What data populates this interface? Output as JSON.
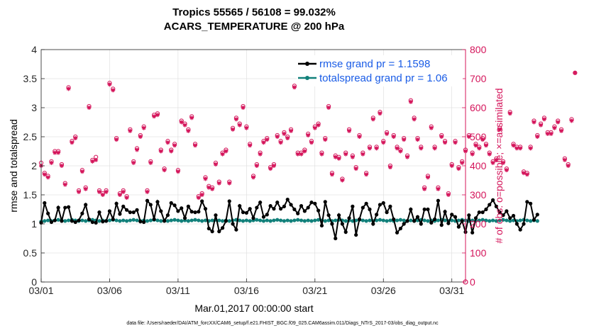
{
  "chart_data": {
    "type": "line",
    "title_line1": "Tropics 55565 / 56108 = 99.032%",
    "title_line2": "ACARS_TEMPERATURE @ 200 hPa",
    "xlabel": "Mar.01,2017 00:00:00 start",
    "ylabel_left": "rmse and totalspread",
    "ylabel_right": "# of obs: o=possible; ×=assimilated",
    "footer": "data file: /Users/raeder/DAI/ATM_forcXX/CAM6_setup/f.e21.FHIST_BGC.f09_025.CAM6assim.011/Diags_NTrS_2017-03/obs_diag_output.nc",
    "x_ticks": [
      {
        "day": 1,
        "label": "03/01"
      },
      {
        "day": 6,
        "label": "03/06"
      },
      {
        "day": 11,
        "label": "03/11"
      },
      {
        "day": 16,
        "label": "03/16"
      },
      {
        "day": 21,
        "label": "03/21"
      },
      {
        "day": 26,
        "label": "03/26"
      },
      {
        "day": 31,
        "label": "03/31"
      }
    ],
    "xlim": [
      1,
      32
    ],
    "ylim_left": [
      0,
      4
    ],
    "yticks_left": [
      "0",
      "0.5",
      "1",
      "1.5",
      "2",
      "2.5",
      "3",
      "3.5",
      "4"
    ],
    "ylim_right": [
      0,
      800
    ],
    "yticks_right": [
      "0",
      "100",
      "200",
      "300",
      "400",
      "500",
      "600",
      "700",
      "800"
    ],
    "colors": {
      "rmse": "#000000",
      "spread": "#11807a",
      "obs": "#d4145a",
      "legend_text": "#1a5ce6",
      "right_axis": "#d4145a"
    },
    "legend": [
      {
        "label": "rmse grand pr = 1.1598",
        "series": "rmse"
      },
      {
        "label": "totalspread grand pr = 1.06",
        "series": "spread"
      }
    ],
    "series": [
      {
        "name": "rmse",
        "x_start": 1.0,
        "x_step": 0.25,
        "values": [
          1.02,
          1.36,
          1.18,
          1.03,
          1.06,
          1.28,
          1.05,
          1.28,
          1.29,
          1.05,
          1.03,
          1.06,
          1.18,
          1.33,
          1.08,
          1.03,
          1.02,
          1.2,
          1.04,
          1.05,
          1.22,
          1.08,
          1.35,
          1.17,
          1.3,
          1.24,
          1.2,
          1.2,
          1.24,
          1.04,
          1.03,
          1.4,
          1.33,
          1.08,
          1.38,
          1.22,
          1.05,
          1.15,
          1.36,
          1.32,
          1.22,
          1.27,
          1.1,
          1.3,
          1.21,
          1.2,
          1.21,
          1.39,
          1.26,
          0.92,
          0.87,
          1.15,
          0.87,
          0.93,
          1.05,
          1.39,
          1.0,
          0.9,
          1.31,
          1.2,
          1.19,
          1.26,
          1.1,
          1.28,
          1.37,
          1.12,
          1.16,
          1.31,
          1.26,
          1.37,
          1.26,
          1.3,
          1.42,
          1.33,
          1.25,
          1.18,
          1.31,
          1.22,
          1.28,
          1.37,
          1.35,
          1.23,
          0.97,
          1.38,
          1.15,
          1.0,
          0.75,
          1.15,
          1.0,
          0.86,
          1.1,
          1.3,
          0.81,
          1.08,
          1.28,
          1.35,
          1.25,
          1.0,
          1.16,
          1.33,
          1.36,
          1.2,
          1.3,
          1.08,
          0.85,
          0.92,
          1.0,
          1.05,
          1.25,
          1.05,
          1.12,
          1.0,
          1.25,
          1.25,
          1.02,
          1.08,
          1.4,
          0.98,
          1.21,
          1.01,
          1.16,
          1.12,
          0.95,
          1.05,
          0.86,
          1.15,
          0.85,
          1.1,
          1.2,
          1.2,
          1.25,
          1.33,
          1.41,
          1.3,
          1.2,
          1.15,
          1.22,
          1.1,
          1.14,
          1.0,
          0.9,
          1.0,
          1.38,
          1.35,
          1.07,
          1.16
        ]
      },
      {
        "name": "totalspread",
        "x_start": 1.0,
        "x_step": 0.25,
        "values": [
          1.04,
          1.05,
          1.06,
          1.05,
          1.06,
          1.07,
          1.06,
          1.05,
          1.06,
          1.07,
          1.06,
          1.05,
          1.06,
          1.05,
          1.06,
          1.07,
          1.06,
          1.05,
          1.06,
          1.05,
          1.06,
          1.07,
          1.06,
          1.05,
          1.06,
          1.05,
          1.06,
          1.07,
          1.06,
          1.05,
          1.06,
          1.05,
          1.06,
          1.07,
          1.06,
          1.05,
          1.06,
          1.05,
          1.06,
          1.07,
          1.06,
          1.05,
          1.06,
          1.05,
          1.06,
          1.07,
          1.06,
          1.05,
          1.06,
          1.05,
          1.06,
          1.07,
          1.06,
          1.05,
          1.06,
          1.05,
          1.06,
          1.07,
          1.06,
          1.05,
          1.06,
          1.05,
          1.06,
          1.07,
          1.06,
          1.05,
          1.06,
          1.05,
          1.06,
          1.07,
          1.06,
          1.05,
          1.06,
          1.05,
          1.06,
          1.07,
          1.06,
          1.05,
          1.06,
          1.05,
          1.06,
          1.07,
          1.06,
          1.05,
          1.06,
          1.05,
          1.06,
          1.07,
          1.06,
          1.05,
          1.06,
          1.05,
          1.06,
          1.07,
          1.06,
          1.05,
          1.06,
          1.05,
          1.06,
          1.07,
          1.06,
          1.05,
          1.06,
          1.05,
          1.06,
          1.07,
          1.06,
          1.05,
          1.06,
          1.05,
          1.06,
          1.07,
          1.06,
          1.05,
          1.06,
          1.05,
          1.06,
          1.07,
          1.06,
          1.05,
          1.06,
          1.05,
          1.06,
          1.07,
          1.06,
          1.05,
          1.06,
          1.05,
          1.06,
          1.07,
          1.06,
          1.05,
          1.06,
          1.05,
          1.06,
          1.07,
          1.06,
          1.05,
          1.06,
          1.05,
          1.06,
          1.07,
          1.06,
          1.05,
          1.06,
          1.05
        ]
      },
      {
        "name": "obs_assimilated",
        "x_start": 1.0,
        "x_step": 0.25,
        "values": [
          400,
          370,
          360,
          410,
          445,
          445,
          400,
          335,
          665,
          480,
          495,
          310,
          380,
          320,
          600,
          415,
          420,
          310,
          300,
          310,
          680,
          660,
          490,
          300,
          310,
          290,
          520,
          410,
          455,
          500,
          530,
          310,
          410,
          570,
          575,
          450,
          385,
          480,
          450,
          470,
          380,
          550,
          540,
          520,
          565,
          470,
          290,
          300,
          355,
          325,
          320,
          405,
          340,
          440,
          450,
          340,
          525,
          560,
          540,
          600,
          530,
          470,
          360,
          400,
          440,
          480,
          490,
          390,
          400,
          500,
          480,
          510,
          495,
          520,
          670,
          440,
          440,
          450,
          505,
          480,
          530,
          540,
          440,
          490,
          600,
          370,
          430,
          425,
          350,
          440,
          520,
          430,
          390,
          500,
          440,
          370,
          460,
          560,
          460,
          580,
          480,
          510,
          395,
          500,
          460,
          450,
          490,
          430,
          620,
          560,
          490,
          460,
          320,
          360,
          530,
          460,
          320,
          500,
          480,
          300,
          400,
          480,
          390,
          410,
          450,
          500,
          440,
          470,
          460,
          490,
          470,
          440,
          410,
          420,
          525,
          410,
          385,
          580,
          470,
          460,
          460,
          375,
          370,
          460,
          550,
          500,
          540,
          560,
          510,
          510,
          530,
          550,
          520,
          420,
          400,
          555,
          720
        ]
      },
      {
        "name": "obs_possible",
        "x_start": 1.0,
        "x_step": 0.25,
        "values": [
          410,
          375,
          365,
          415,
          450,
          450,
          405,
          340,
          670,
          485,
          500,
          315,
          385,
          325,
          605,
          420,
          430,
          315,
          305,
          315,
          685,
          665,
          495,
          305,
          315,
          295,
          525,
          415,
          460,
          505,
          535,
          315,
          415,
          575,
          580,
          455,
          390,
          485,
          455,
          475,
          385,
          555,
          545,
          525,
          570,
          475,
          295,
          305,
          360,
          330,
          325,
          410,
          345,
          445,
          455,
          345,
          530,
          565,
          545,
          605,
          535,
          475,
          365,
          405,
          445,
          485,
          495,
          395,
          405,
          505,
          485,
          515,
          500,
          525,
          675,
          445,
          445,
          455,
          510,
          485,
          535,
          545,
          445,
          495,
          605,
          375,
          435,
          430,
          355,
          445,
          525,
          435,
          395,
          505,
          445,
          375,
          465,
          565,
          465,
          585,
          485,
          515,
          400,
          505,
          465,
          455,
          495,
          435,
          625,
          565,
          495,
          465,
          325,
          365,
          535,
          465,
          325,
          505,
          485,
          305,
          405,
          485,
          395,
          415,
          455,
          505,
          445,
          475,
          465,
          495,
          475,
          445,
          415,
          425,
          530,
          415,
          390,
          585,
          475,
          465,
          465,
          380,
          375,
          465,
          555,
          505,
          545,
          565,
          515,
          515,
          535,
          555,
          525,
          425,
          405,
          560,
          720
        ]
      }
    ]
  }
}
